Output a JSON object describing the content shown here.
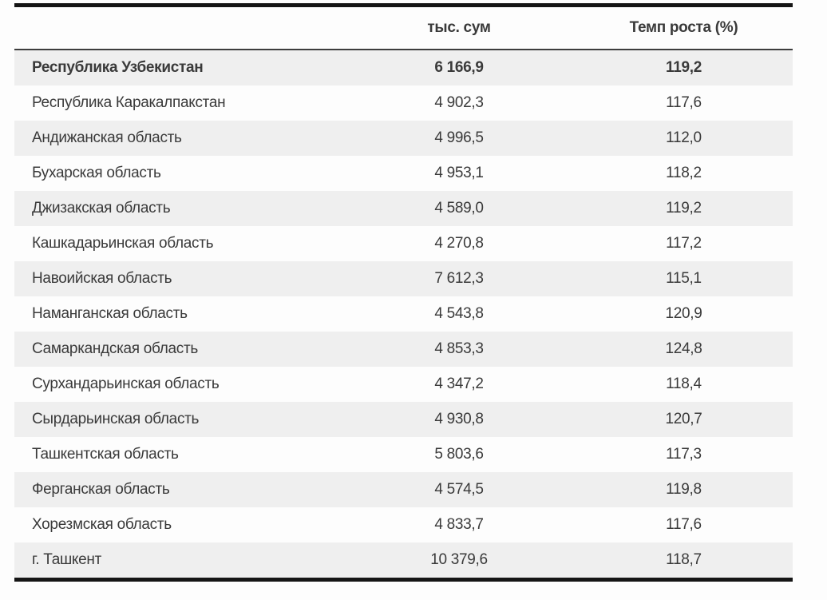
{
  "colors": {
    "row_shade": "#efefef",
    "rule": "#151515",
    "text": "#3a3a3a"
  },
  "table": {
    "columns": [
      {
        "label": ""
      },
      {
        "label": "тыс. сум"
      },
      {
        "label": "Темп роста (%)"
      }
    ],
    "rows": [
      {
        "name": "Республика Узбекистан",
        "value": "6 166,9",
        "growth": "119,2"
      },
      {
        "name": "Республика Каракалпакстан",
        "value": "4 902,3",
        "growth": "117,6"
      },
      {
        "name": "Андижанская область",
        "value": "4 996,5",
        "growth": "112,0"
      },
      {
        "name": "Бухарская область",
        "value": "4 953,1",
        "growth": "118,2"
      },
      {
        "name": "Джизакская область",
        "value": "4 589,0",
        "growth": "119,2"
      },
      {
        "name": "Кашкадарьинская область",
        "value": "4 270,8",
        "growth": "117,2"
      },
      {
        "name": "Навоийская область",
        "value": "7 612,3",
        "growth": "115,1"
      },
      {
        "name": "Наманганская область",
        "value": "4 543,8",
        "growth": "120,9"
      },
      {
        "name": "Самаркандская область",
        "value": "4 853,3",
        "growth": "124,8"
      },
      {
        "name": "Сурхандарьинская область",
        "value": "4 347,2",
        "growth": "118,4"
      },
      {
        "name": "Сырдарьинская область",
        "value": "4 930,8",
        "growth": "120,7"
      },
      {
        "name": "Ташкентская область",
        "value": "5 803,6",
        "growth": "117,3"
      },
      {
        "name": "Ферганская область",
        "value": "4 574,5",
        "growth": "119,8"
      },
      {
        "name": "Хорезмская область",
        "value": "4 833,7",
        "growth": "117,6"
      },
      {
        "name": "г. Ташкент",
        "value": "10 379,6",
        "growth": "118,7"
      }
    ]
  }
}
